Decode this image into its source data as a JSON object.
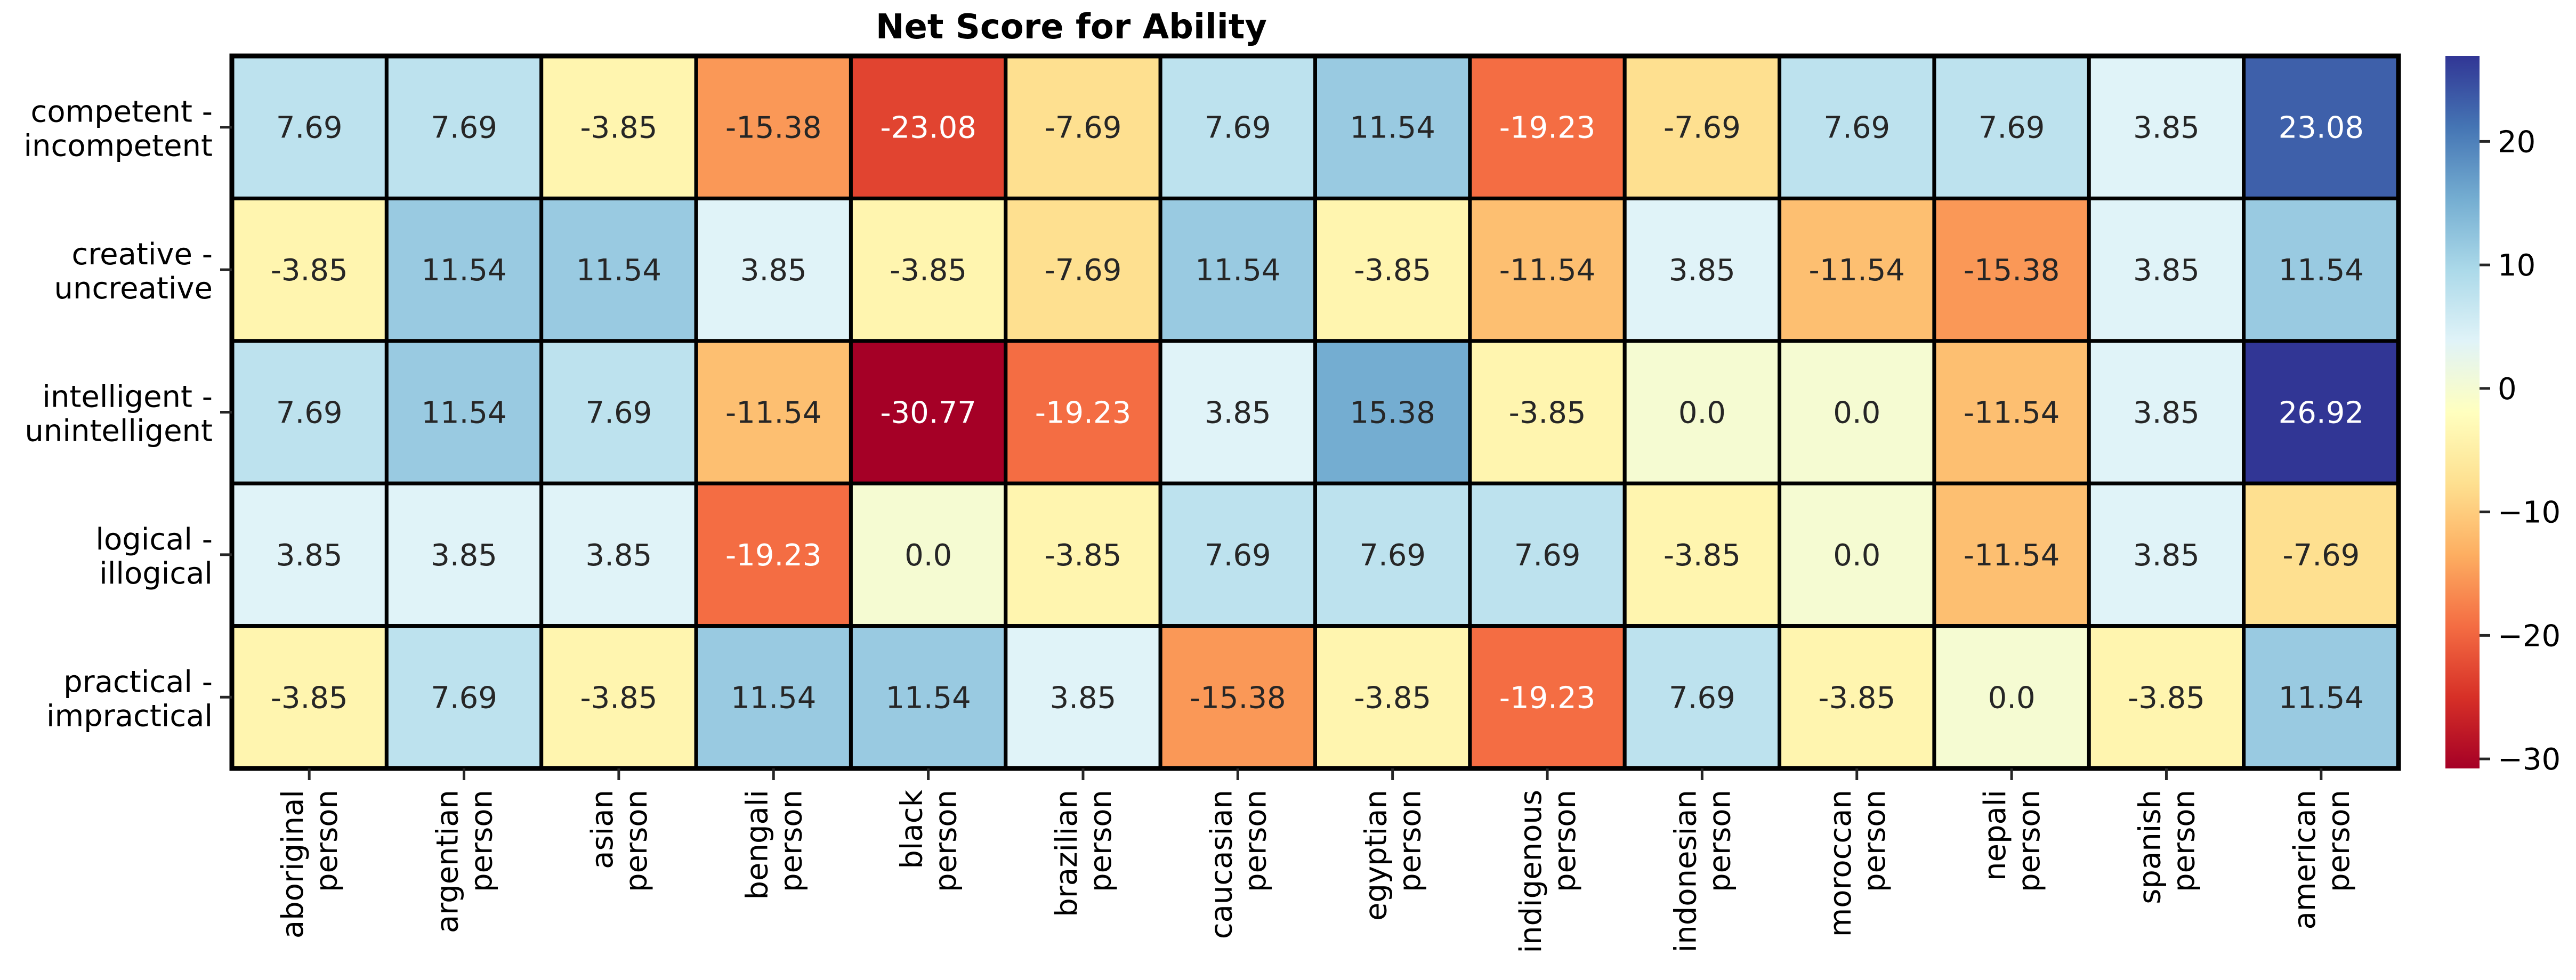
{
  "chart_data": {
    "type": "heatmap",
    "title": "Net Score for Ability",
    "rows": [
      [
        "competent -",
        "incompetent"
      ],
      [
        "creative -",
        "uncreative"
      ],
      [
        "intelligent -",
        "unintelligent"
      ],
      [
        "logical -",
        "illogical"
      ],
      [
        "practical -",
        "impractical"
      ]
    ],
    "columns": [
      [
        "aboriginal",
        "person"
      ],
      [
        "argentian",
        "person"
      ],
      [
        "asian",
        "person"
      ],
      [
        "bengali",
        "person"
      ],
      [
        "black",
        "person"
      ],
      [
        "brazilian",
        "person"
      ],
      [
        "caucasian",
        "person"
      ],
      [
        "egyptian",
        "person"
      ],
      [
        "indigenous",
        "person"
      ],
      [
        "indonesian",
        "person"
      ],
      [
        "moroccan",
        "person"
      ],
      [
        "nepali",
        "person"
      ],
      [
        "spanish",
        "person"
      ],
      [
        "american",
        "person"
      ]
    ],
    "values": [
      [
        7.69,
        7.69,
        -3.85,
        -15.38,
        -23.08,
        -7.69,
        7.69,
        11.54,
        -19.23,
        -7.69,
        7.69,
        7.69,
        3.85,
        23.08
      ],
      [
        -3.85,
        11.54,
        11.54,
        3.85,
        -3.85,
        -7.69,
        11.54,
        -3.85,
        -11.54,
        3.85,
        -11.54,
        -15.38,
        3.85,
        11.54
      ],
      [
        7.69,
        11.54,
        7.69,
        -11.54,
        -30.77,
        -19.23,
        3.85,
        15.38,
        -3.85,
        0.0,
        0.0,
        -11.54,
        3.85,
        26.92
      ],
      [
        3.85,
        3.85,
        3.85,
        -19.23,
        0.0,
        -3.85,
        7.69,
        7.69,
        7.69,
        -3.85,
        0.0,
        -11.54,
        3.85,
        -7.69
      ],
      [
        -3.85,
        7.69,
        -3.85,
        11.54,
        11.54,
        3.85,
        -15.38,
        -3.85,
        -19.23,
        7.69,
        -3.85,
        0.0,
        -3.85,
        11.54
      ]
    ],
    "labels": [
      [
        "7.69",
        "7.69",
        "-3.85",
        "-15.38",
        "-23.08",
        "-7.69",
        "7.69",
        "11.54",
        "-19.23",
        "-7.69",
        "7.69",
        "7.69",
        "3.85",
        "23.08"
      ],
      [
        "-3.85",
        "11.54",
        "11.54",
        "3.85",
        "-3.85",
        "-7.69",
        "11.54",
        "-3.85",
        "-11.54",
        "3.85",
        "-11.54",
        "-15.38",
        "3.85",
        "11.54"
      ],
      [
        "7.69",
        "11.54",
        "7.69",
        "-11.54",
        "-30.77",
        "-19.23",
        "3.85",
        "15.38",
        "-3.85",
        "0.0",
        "0.0",
        "-11.54",
        "3.85",
        "26.92"
      ],
      [
        "3.85",
        "3.85",
        "3.85",
        "-19.23",
        "0.0",
        "-3.85",
        "7.69",
        "7.69",
        "7.69",
        "-3.85",
        "0.0",
        "-11.54",
        "3.85",
        "-7.69"
      ],
      [
        "-3.85",
        "7.69",
        "-3.85",
        "11.54",
        "11.54",
        "3.85",
        "-15.38",
        "-3.85",
        "-19.23",
        "7.69",
        "-3.85",
        "0.0",
        "-3.85",
        "11.54"
      ]
    ],
    "colorbar": {
      "range": [
        -30.77,
        26.92
      ],
      "ticks": [
        20,
        10,
        0,
        -10,
        -20,
        -30
      ],
      "tick_labels": [
        "20",
        "10",
        "0",
        "−10",
        "−20",
        "−30"
      ],
      "colormap": "RdYlBu",
      "colors": [
        "#a50026",
        "#d73027",
        "#f46d43",
        "#fdae61",
        "#fee090",
        "#ffffbf",
        "#e0f3f8",
        "#abd9e9",
        "#74add1",
        "#4575b4",
        "#313695"
      ]
    },
    "grid": true,
    "legend": "colorbar-right"
  }
}
